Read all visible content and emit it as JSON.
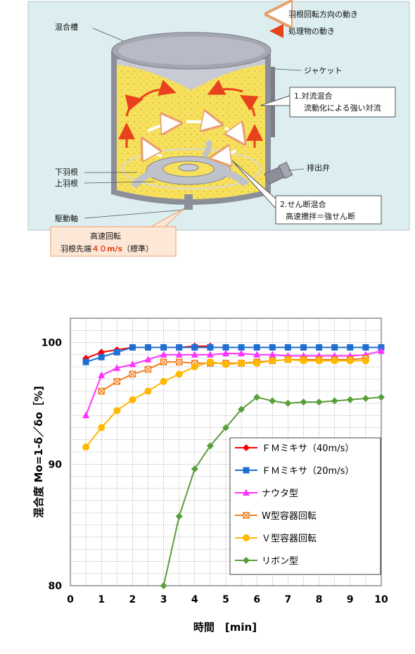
{
  "diagram": {
    "labels": {
      "mixing_tank": "混合槽",
      "jacket": "ジャケット",
      "lower_blade": "下羽根",
      "upper_blade": "上羽根",
      "drive_shaft": "駆動軸",
      "discharge_valve": "排出弁",
      "legend_blade": "羽根回転方向の動き",
      "legend_material": "処理物の動き",
      "convection_title": "1.対流混合",
      "convection_desc": "流動化による強い対流",
      "shear_title": "2.せん断混合",
      "shear_desc": "高速攪拌＝強せん断",
      "highspeed_title": "高速回転",
      "highspeed_prefix": "羽根先端",
      "highspeed_speed": "４０m/s",
      "highspeed_suffix": "（標準）"
    },
    "colors": {
      "panel_bg": "#dceef0",
      "material": "#f7e15c",
      "tank": "#8c8f9a",
      "material_arrow": "#e8421c",
      "highspeed_box": "#fde7d6",
      "speed_text": "#e8421c"
    }
  },
  "chart_data": {
    "type": "line",
    "title": "",
    "xlabel": "時間　[min]",
    "ylabel": "混合度 Mo=1-δ／δo［%]",
    "xlim": [
      0,
      10
    ],
    "ylim": [
      80,
      102
    ],
    "xticks": [
      "0",
      "1",
      "2",
      "3",
      "4",
      "5",
      "6",
      "7",
      "8",
      "9",
      "10"
    ],
    "yticks": [
      "80",
      "90",
      "100"
    ],
    "grid": true,
    "legend_position": "lower-right",
    "series": [
      {
        "name": "ＦＭミキサ（40m/s）",
        "color": "#ff0000",
        "marker": "diamond",
        "x": [
          0.5,
          1,
          1.5,
          2,
          2.5,
          3,
          3.5,
          4,
          4.5
        ],
        "y": [
          98.7,
          99.2,
          99.4,
          99.6,
          99.6,
          99.6,
          99.6,
          99.7,
          99.7
        ]
      },
      {
        "name": "ＦＭミキサ（20m/s）",
        "color": "#1f6fd1",
        "marker": "square",
        "x": [
          0.5,
          1,
          1.5,
          2,
          2.5,
          3,
          3.5,
          4,
          4.5,
          5,
          5.5,
          6,
          6.5,
          7,
          7.5,
          8,
          8.5,
          9,
          9.5,
          10
        ],
        "y": [
          98.4,
          98.8,
          99.2,
          99.6,
          99.6,
          99.6,
          99.6,
          99.6,
          99.6,
          99.6,
          99.6,
          99.6,
          99.6,
          99.6,
          99.6,
          99.6,
          99.6,
          99.6,
          99.6,
          99.6
        ]
      },
      {
        "name": "ナウタ型",
        "color": "#ff33ff",
        "marker": "triangle",
        "x": [
          0.5,
          1,
          1.5,
          2,
          2.5,
          3,
          3.5,
          4,
          4.5,
          5,
          5.5,
          6,
          6.5,
          7,
          7.5,
          8,
          8.5,
          9,
          9.5,
          10
        ],
        "y": [
          94,
          97.3,
          97.9,
          98.2,
          98.6,
          99,
          99,
          99,
          99,
          99.1,
          99.1,
          99,
          99,
          98.9,
          98.9,
          98.9,
          98.9,
          98.9,
          99,
          99.3
        ]
      },
      {
        "name": "W型容器回転",
        "color": "#f08020",
        "marker": "x-square",
        "x": [
          1,
          1.5,
          2,
          2.5,
          3,
          3.5,
          4,
          4.5,
          5,
          5.5,
          6,
          6.5,
          7,
          7.5,
          8,
          8.5,
          9,
          9.5
        ],
        "y": [
          96,
          96.8,
          97.4,
          97.8,
          98.4,
          98.4,
          98.3,
          98.3,
          98.3,
          98.3,
          98.4,
          98.5,
          98.6,
          98.6,
          98.6,
          98.6,
          98.6,
          98.7
        ]
      },
      {
        "name": "Ｖ型容器回転",
        "color": "#ffb800",
        "marker": "circle",
        "x": [
          0.5,
          1,
          1.5,
          2,
          2.5,
          3,
          3.5,
          4,
          4.5,
          5,
          5.5,
          6,
          6.5,
          7,
          7.5,
          8,
          8.5,
          9,
          9.5
        ],
        "y": [
          91.4,
          93,
          94.4,
          95.3,
          96,
          96.8,
          97.4,
          98,
          98.4,
          98.2,
          98.3,
          98.3,
          98.5,
          98.6,
          98.5,
          98.5,
          98.5,
          98.5,
          98.5
        ]
      },
      {
        "name": "リボン型",
        "color": "#5a9e3c",
        "marker": "diamond",
        "x": [
          3,
          3.5,
          4,
          4.5,
          5,
          5.5,
          6,
          6.5,
          7,
          7.5,
          8,
          8.5,
          9,
          9.5,
          10
        ],
        "y": [
          80,
          85.7,
          89.6,
          91.5,
          93,
          94.5,
          95.5,
          95.2,
          95,
          95.1,
          95.1,
          95.2,
          95.3,
          95.4,
          95.5
        ]
      }
    ]
  }
}
